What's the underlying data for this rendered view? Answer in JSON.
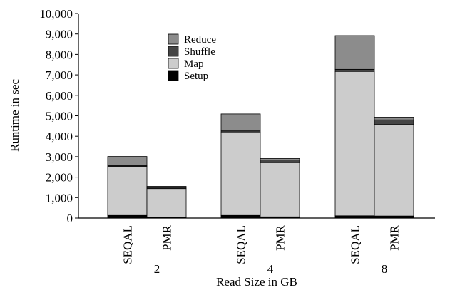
{
  "chart_data": {
    "type": "bar",
    "stacked": true,
    "xlabel": "Read Size in GB",
    "ylabel": "Runtime in sec",
    "ylim": [
      0,
      10000
    ],
    "yticks": [
      "0",
      "1,000",
      "2,000",
      "3,000",
      "4,000",
      "5,000",
      "6,000",
      "7,000",
      "8,000",
      "9,000",
      "10,000"
    ],
    "grid": false,
    "legend_position": "top-center-left",
    "groups": [
      {
        "label": "2",
        "bars": [
          {
            "label": "SEQAL",
            "setup": 130,
            "map": 2390,
            "shuffle": 50,
            "reduce": 440
          },
          {
            "label": "PMR",
            "setup": 30,
            "map": 1410,
            "shuffle": 60,
            "reduce": 50
          }
        ]
      },
      {
        "label": "4",
        "bars": [
          {
            "label": "SEQAL",
            "setup": 130,
            "map": 4080,
            "shuffle": 80,
            "reduce": 800
          },
          {
            "label": "PMR",
            "setup": 60,
            "map": 2650,
            "shuffle": 130,
            "reduce": 70
          }
        ]
      },
      {
        "label": "8",
        "bars": [
          {
            "label": "SEQAL",
            "setup": 110,
            "map": 7060,
            "shuffle": 100,
            "reduce": 1650
          },
          {
            "label": "PMR",
            "setup": 100,
            "map": 4470,
            "shuffle": 230,
            "reduce": 130
          }
        ]
      }
    ],
    "series": [
      {
        "key": "reduce",
        "name": "Reduce",
        "color": "#8c8c8c"
      },
      {
        "key": "shuffle",
        "name": "Shuffle",
        "color": "#454545"
      },
      {
        "key": "map",
        "name": "Map",
        "color": "#cccccc"
      },
      {
        "key": "setup",
        "name": "Setup",
        "color": "#000000"
      }
    ]
  }
}
